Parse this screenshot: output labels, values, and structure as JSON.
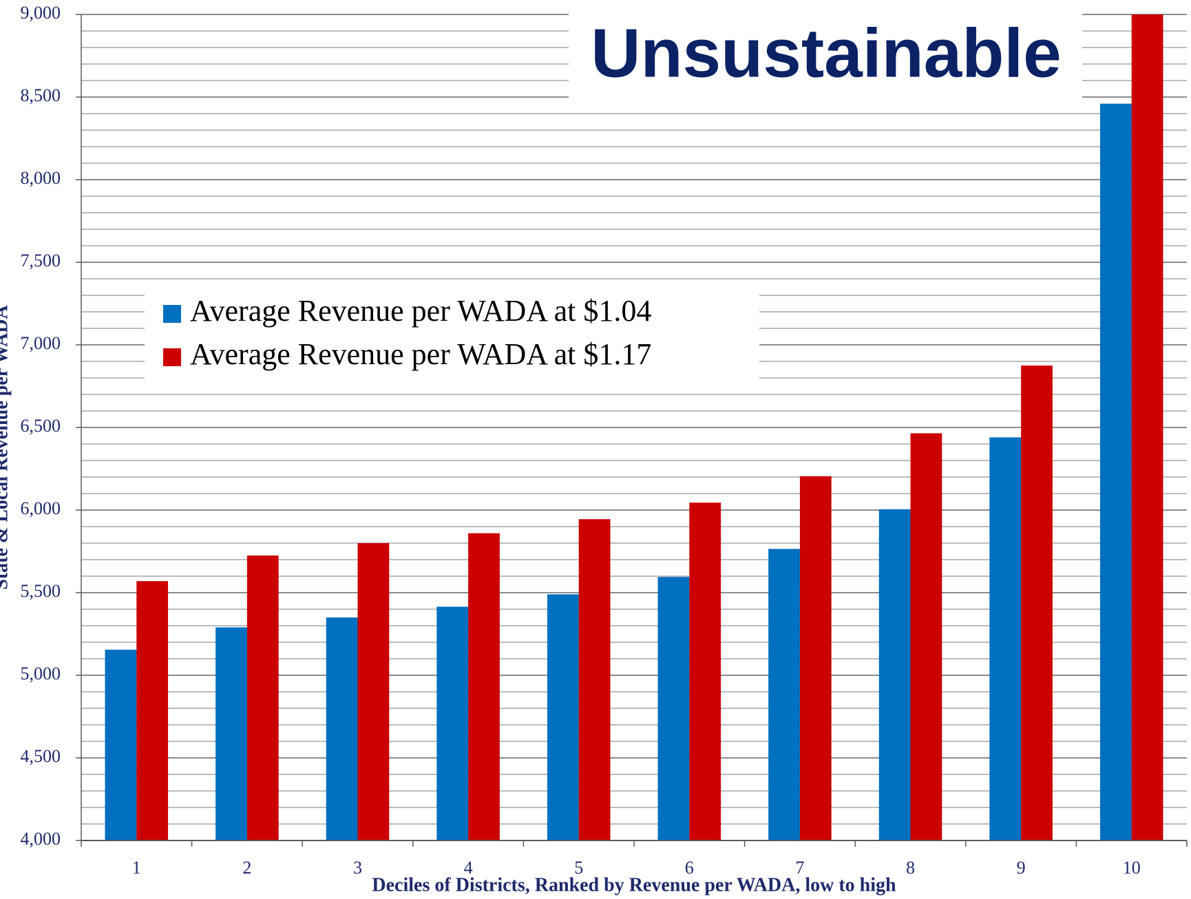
{
  "chart_data": {
    "type": "bar",
    "title": "Unsustainable",
    "x_label": "Deciles of Districts, Ranked by Revenue per WADA, low to high",
    "y_label": "State & Local Revenue per WADA",
    "categories": [
      "1",
      "2",
      "3",
      "4",
      "5",
      "6",
      "7",
      "8",
      "9",
      "10"
    ],
    "series": [
      {
        "name": "Average Revenue per WADA at $1.04",
        "color": "#0070c0",
        "values": [
          5155,
          5290,
          5350,
          5415,
          5490,
          5595,
          5765,
          6005,
          6440,
          8460
        ]
      },
      {
        "name": "Average Revenue per WADA at $1.17",
        "color": "#cc0000",
        "values": [
          5570,
          5725,
          5800,
          5860,
          5945,
          6045,
          6205,
          6465,
          6875,
          9000
        ]
      }
    ],
    "ylim": [
      4000,
      9000
    ],
    "yticks": [
      {
        "value": 4000,
        "label": "4,000"
      },
      {
        "value": 4500,
        "label": "4,500"
      },
      {
        "value": 5000,
        "label": "5,000"
      },
      {
        "value": 5500,
        "label": "5,500"
      },
      {
        "value": 6000,
        "label": "6,000"
      },
      {
        "value": 6500,
        "label": "6,500"
      },
      {
        "value": 7000,
        "label": "7,000"
      },
      {
        "value": 7500,
        "label": "7,500"
      },
      {
        "value": 8000,
        "label": "8,000"
      },
      {
        "value": 8500,
        "label": "8,500"
      },
      {
        "value": 9000,
        "label": "9,000"
      }
    ],
    "minor_yticks": [
      4100,
      4200,
      4300,
      4400,
      4600,
      4700,
      4800,
      4900,
      5100,
      5200,
      5300,
      5400,
      5600,
      5700,
      5800,
      5900,
      6100,
      6200,
      6300,
      6400,
      6600,
      6700,
      6800,
      6900,
      7100,
      7200,
      7300,
      7400,
      7600,
      7700,
      7800,
      7900,
      8100,
      8200,
      8300,
      8400,
      8600,
      8700,
      8800,
      8900
    ],
    "grid": true
  }
}
